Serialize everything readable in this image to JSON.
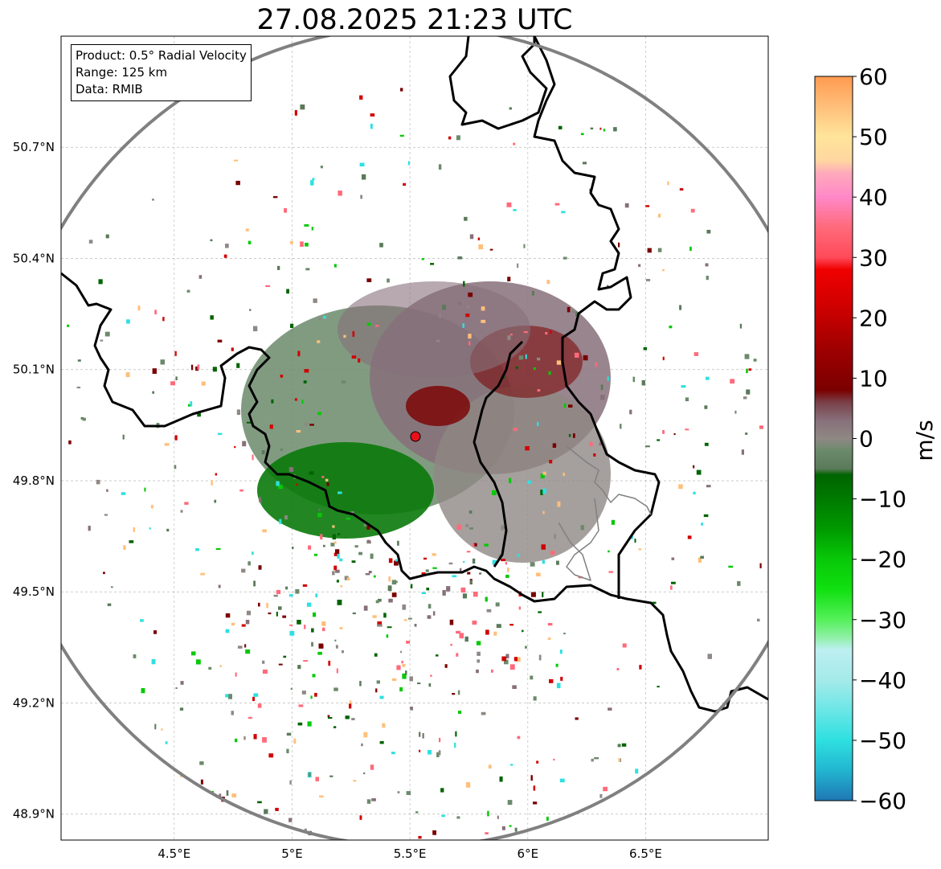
{
  "title": "27.08.2025 21:23 UTC",
  "info_box": {
    "product": "Product: 0.5° Radial Velocity",
    "range": "Range: 125 km",
    "data": "Data: RMIB"
  },
  "map": {
    "lon_range": [
      4.02,
      7.02
    ],
    "lat_range": [
      48.83,
      51.0
    ],
    "radar_site": {
      "lon": 5.505,
      "lat": 49.914,
      "marker_color": "#e8101a"
    },
    "range_ring_color": "#808080",
    "border_color": "#000000",
    "lat_ticks": [
      {
        "value": 50.7,
        "label": "50.7°N"
      },
      {
        "value": 50.4,
        "label": "50.4°N"
      },
      {
        "value": 50.1,
        "label": "50.1°N"
      },
      {
        "value": 49.8,
        "label": "49.8°N"
      },
      {
        "value": 49.5,
        "label": "49.5°N"
      },
      {
        "value": 49.2,
        "label": "49.2°N"
      },
      {
        "value": 48.9,
        "label": "48.9°N"
      }
    ],
    "lon_ticks": [
      {
        "value": 4.5,
        "label": "4.5°E"
      },
      {
        "value": 5.0,
        "label": "5°E"
      },
      {
        "value": 5.5,
        "label": "5.5°E"
      },
      {
        "value": 6.0,
        "label": "6°E"
      },
      {
        "value": 6.5,
        "label": "6.5°E"
      }
    ],
    "grid": true
  },
  "colorbar": {
    "unit": "m/s",
    "min": -60,
    "max": 60,
    "ticks": [
      {
        "value": 60,
        "label": "60"
      },
      {
        "value": 50,
        "label": "50"
      },
      {
        "value": 40,
        "label": "40"
      },
      {
        "value": 30,
        "label": "30"
      },
      {
        "value": 20,
        "label": "20"
      },
      {
        "value": 10,
        "label": "10"
      },
      {
        "value": 0,
        "label": "0"
      },
      {
        "value": -10,
        "label": "−10"
      },
      {
        "value": -20,
        "label": "−20"
      },
      {
        "value": -30,
        "label": "−30"
      },
      {
        "value": -40,
        "label": "−40"
      },
      {
        "value": -50,
        "label": "−50"
      },
      {
        "value": -60,
        "label": "−60"
      }
    ],
    "stops": [
      {
        "value": -60,
        "color": "#1f77b4"
      },
      {
        "value": -55,
        "color": "#22b5d0"
      },
      {
        "value": -50,
        "color": "#2ee0e0"
      },
      {
        "value": -45,
        "color": "#6ce6e6"
      },
      {
        "value": -40,
        "color": "#a5eaea"
      },
      {
        "value": -35,
        "color": "#bdeff0"
      },
      {
        "value": -33,
        "color": "#90f0a8"
      },
      {
        "value": -30,
        "color": "#55f05a"
      },
      {
        "value": -25,
        "color": "#10e010"
      },
      {
        "value": -20,
        "color": "#08c808"
      },
      {
        "value": -15,
        "color": "#009a00"
      },
      {
        "value": -10,
        "color": "#007a00"
      },
      {
        "value": -6,
        "color": "#006400"
      },
      {
        "value": -5,
        "color": "#5a7a5a"
      },
      {
        "value": -2,
        "color": "#6b8a6b"
      },
      {
        "value": 0,
        "color": "#8f8884"
      },
      {
        "value": 3,
        "color": "#87707a"
      },
      {
        "value": 6,
        "color": "#7a4048"
      },
      {
        "value": 8,
        "color": "#7a0000"
      },
      {
        "value": 15,
        "color": "#a00000"
      },
      {
        "value": 22,
        "color": "#d00000"
      },
      {
        "value": 28,
        "color": "#f00000"
      },
      {
        "value": 30,
        "color": "#ff4a5a"
      },
      {
        "value": 35,
        "color": "#ff6a7a"
      },
      {
        "value": 40,
        "color": "#ff88c8"
      },
      {
        "value": 44,
        "color": "#ffaabb"
      },
      {
        "value": 46,
        "color": "#ffd6a0"
      },
      {
        "value": 50,
        "color": "#ffe49a"
      },
      {
        "value": 55,
        "color": "#ffbf7a"
      },
      {
        "value": 60,
        "color": "#ff9a50"
      }
    ]
  }
}
